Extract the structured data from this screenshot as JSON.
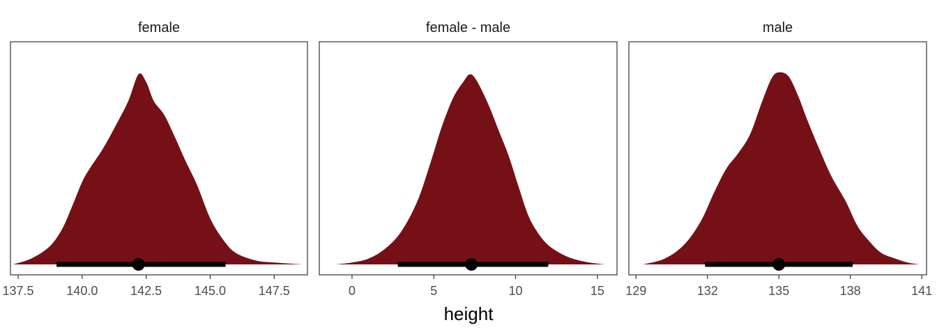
{
  "chart_data": [
    {
      "type": "area",
      "title": "female",
      "xlim": [
        137.2,
        148.8
      ],
      "xticks": [
        137.5,
        140.0,
        142.5,
        145.0,
        147.5
      ],
      "xtick_labels": [
        "137.5",
        "140.0",
        "142.5",
        "145.0",
        "147.5"
      ],
      "fill_color": "#761017",
      "density": {
        "x": [
          137.3,
          138.0,
          138.7,
          139.2,
          139.6,
          140.0,
          140.3,
          140.8,
          141.3,
          141.8,
          142.2,
          142.5,
          142.8,
          143.2,
          143.6,
          144.0,
          144.5,
          145.0,
          145.5,
          146.0,
          146.8,
          147.5,
          148.6
        ],
        "y": [
          0.0,
          0.03,
          0.09,
          0.18,
          0.3,
          0.43,
          0.5,
          0.6,
          0.72,
          0.85,
          0.99,
          0.95,
          0.85,
          0.78,
          0.67,
          0.55,
          0.41,
          0.24,
          0.13,
          0.06,
          0.02,
          0.01,
          0.0
        ]
      },
      "point_estimate": 142.2,
      "interval": [
        139.0,
        145.6
      ]
    },
    {
      "type": "area",
      "title": "female - male",
      "xlim": [
        -2.0,
        16.2
      ],
      "xticks": [
        0,
        5,
        10,
        15
      ],
      "xtick_labels": [
        "0",
        "5",
        "10",
        "15"
      ],
      "fill_color": "#761017",
      "density": {
        "x": [
          -1.0,
          0.0,
          1.0,
          2.0,
          3.0,
          4.0,
          4.8,
          5.5,
          6.2,
          6.8,
          7.2,
          7.6,
          8.3,
          9.0,
          9.6,
          10.2,
          10.8,
          11.4,
          12.0,
          12.7,
          13.5,
          14.5,
          15.5
        ],
        "y": [
          0.0,
          0.01,
          0.03,
          0.08,
          0.17,
          0.33,
          0.53,
          0.72,
          0.87,
          0.95,
          0.99,
          0.96,
          0.84,
          0.69,
          0.56,
          0.4,
          0.25,
          0.16,
          0.1,
          0.06,
          0.03,
          0.01,
          0.0
        ]
      },
      "point_estimate": 7.3,
      "interval": [
        2.8,
        12.0
      ]
    },
    {
      "type": "area",
      "title": "male",
      "xlim": [
        128.7,
        141.2
      ],
      "xticks": [
        129,
        132,
        135,
        138,
        141
      ],
      "xtick_labels": [
        "129",
        "132",
        "135",
        "138",
        "141"
      ],
      "fill_color": "#761017",
      "density": {
        "x": [
          129.3,
          130.2,
          131.0,
          131.7,
          132.3,
          132.8,
          133.3,
          133.8,
          134.3,
          134.7,
          135.0,
          135.4,
          135.8,
          136.2,
          136.7,
          137.2,
          137.8,
          138.3,
          138.8,
          139.3,
          139.9,
          140.4,
          140.9
        ],
        "y": [
          0.0,
          0.03,
          0.1,
          0.22,
          0.38,
          0.5,
          0.58,
          0.68,
          0.85,
          0.97,
          1.0,
          0.98,
          0.88,
          0.75,
          0.6,
          0.46,
          0.33,
          0.2,
          0.12,
          0.06,
          0.03,
          0.01,
          0.0
        ]
      },
      "point_estimate": 135.0,
      "interval": [
        131.9,
        138.1
      ]
    }
  ],
  "xlabel": "height"
}
